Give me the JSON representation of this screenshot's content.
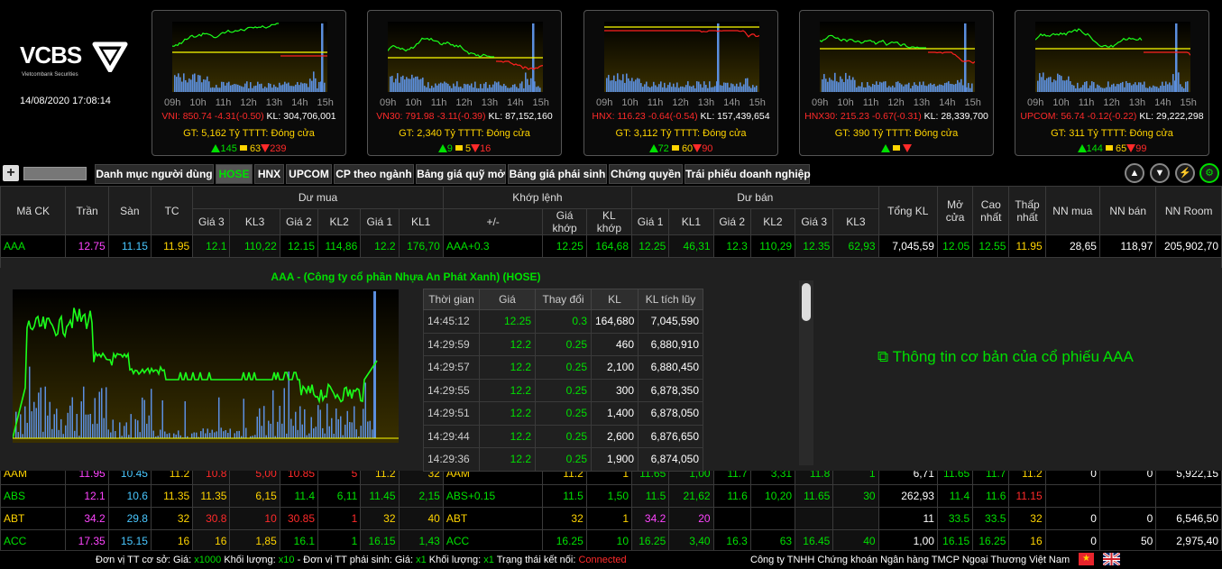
{
  "brand": {
    "name": "VCBS",
    "tagline": "Vietcombank Securities",
    "datetime": "14/08/2020  17:08:14"
  },
  "time_ticks": [
    "09h",
    "10h",
    "11h",
    "12h",
    "13h",
    "14h",
    "15h"
  ],
  "indices": [
    {
      "name": "VNI",
      "value": "850.74",
      "change": "-4.31(-0.50)",
      "kl_label": "KL:",
      "kl": "304,706,001",
      "gt": "GT: 5,162 Tỷ",
      "tttt": "TTTT: Đóng cửa",
      "up": "145",
      "eq": "63",
      "dn": "239"
    },
    {
      "name": "VN30",
      "value": "791.98",
      "change": "-3.11(-0.39)",
      "kl_label": "KL:",
      "kl": "87,152,160",
      "gt": "GT: 2,340 Tỷ",
      "tttt": "TTTT: Đóng cửa",
      "up": "9",
      "eq": "5",
      "dn": "16"
    },
    {
      "name": "HNX",
      "value": "116.23",
      "change": "-0.64(-0.54)",
      "kl_label": "KL:",
      "kl": "157,439,654",
      "gt": "GT: 3,112 Tỷ",
      "tttt": "TTTT: Đóng cửa",
      "up": "72",
      "eq": "60",
      "dn": "90"
    },
    {
      "name": "HNX30",
      "value": "215.23",
      "change": "-0.67(-0.31)",
      "kl_label": "KL:",
      "kl": "28,339,700",
      "gt": "GT: 390 Tỷ",
      "tttt": "TTTT: Đóng cửa",
      "up": "",
      "eq": "",
      "dn": ""
    },
    {
      "name": "UPCOM",
      "value": "56.74",
      "change": "-0.12(-0.22)",
      "kl_label": "KL:",
      "kl": "29,222,298",
      "gt": "GT: 311 Tỷ",
      "tttt": "TTTT: Đóng cửa",
      "up": "144",
      "eq": "65",
      "dn": "99"
    }
  ],
  "tabs": [
    "Danh mục người dùng",
    "HOSE",
    "HNX",
    "UPCOM",
    "CP theo ngành",
    "Bảng giá quỹ mở",
    "Bảng giá phái sinh",
    "Chứng quyền",
    "Trái phiếu doanh nghiệp"
  ],
  "active_tab": "HOSE",
  "header": {
    "ma_ck": "Mã CK",
    "tran": "Trần",
    "san": "Sàn",
    "tc": "TC",
    "du_mua": "Dư mua",
    "khop_lenh": "Khớp lệnh",
    "du_ban": "Dư bán",
    "tong_kl": "Tổng KL",
    "mo_cua": "Mở cửa",
    "cao_nhat": "Cao nhất",
    "thap_nhat": "Thấp nhất",
    "nn_mua": "NN mua",
    "nn_ban": "NN bán",
    "nn_room": "NN Room",
    "gia3": "Giá 3",
    "kl3": "KL3",
    "gia2": "Giá 2",
    "kl2": "KL2",
    "gia1": "Giá 1",
    "kl1": "KL1",
    "pm": "+/-",
    "gia_khop": "Giá khớp",
    "kl_khop": "KL khớp"
  },
  "rows": [
    {
      "sym": "AAA",
      "tran": "12.75",
      "san": "11.15",
      "tc": "11.95",
      "b3": "12.1",
      "bk3": "110,22",
      "b2": "12.15",
      "bk2": "114,86",
      "b1": "12.2",
      "bk1": "176,70",
      "match": "AAA+0.3",
      "mp": "12.25",
      "mk": "164,68",
      "s1": "12.25",
      "sk1": "46,31",
      "s2": "12.3",
      "sk2": "110,29",
      "s3": "12.35",
      "sk3": "62,93",
      "tkl": "7,045,59",
      "open": "12.05",
      "high": "12.55",
      "low": "11.95",
      "nnm": "28,65",
      "nnb": "118,97",
      "room": "205,902,70"
    },
    {
      "sym": "AAM",
      "tran": "11.95",
      "san": "10.45",
      "tc": "11.2",
      "b3": "10.8",
      "bk3": "5,00",
      "b2": "10.85",
      "bk2": "5",
      "b1": "11.2",
      "bk1": "32",
      "match": "AAM",
      "mp": "11.2",
      "mk": "1",
      "s1": "11.65",
      "sk1": "1,00",
      "s2": "11.7",
      "sk2": "3,31",
      "s3": "11.8",
      "sk3": "1",
      "tkl": "6,71",
      "open": "11.65",
      "high": "11.7",
      "low": "11.2",
      "nnm": "0",
      "nnb": "0",
      "room": "5,922,15"
    },
    {
      "sym": "ABS",
      "tran": "12.1",
      "san": "10.6",
      "tc": "11.35",
      "b3": "11.35",
      "bk3": "6,15",
      "b2": "11.4",
      "bk2": "6,11",
      "b1": "11.45",
      "bk1": "2,15",
      "match": "ABS+0.15",
      "mp": "11.5",
      "mk": "1,50",
      "s1": "11.5",
      "sk1": "21,62",
      "s2": "11.6",
      "sk2": "10,20",
      "s3": "11.65",
      "sk3": "30",
      "tkl": "262,93",
      "open": "11.4",
      "high": "11.6",
      "low": "11.15",
      "nnm": "",
      "nnb": "",
      "room": ""
    },
    {
      "sym": "ABT",
      "tran": "34.2",
      "san": "29.8",
      "tc": "32",
      "b3": "30.8",
      "bk3": "10",
      "b2": "30.85",
      "bk2": "1",
      "b1": "32",
      "bk1": "40",
      "match": "ABT",
      "mp": "32",
      "mk": "1",
      "s1": "34.2",
      "sk1": "20",
      "s2": "",
      "sk2": "",
      "s3": "",
      "sk3": "",
      "tkl": "11",
      "open": "33.5",
      "high": "33.5",
      "low": "32",
      "nnm": "0",
      "nnb": "0",
      "room": "6,546,50"
    },
    {
      "sym": "ACC",
      "tran": "17.35",
      "san": "15.15",
      "tc": "16",
      "b3": "16",
      "bk3": "1,85",
      "b2": "16.1",
      "bk2": "1",
      "b1": "16.15",
      "bk1": "1,43",
      "match": "ACC",
      "mp": "16.25",
      "mk": "10",
      "s1": "16.25",
      "sk1": "3,40",
      "s2": "16.3",
      "sk2": "63",
      "s3": "16.45",
      "sk3": "40",
      "tkl": "1,00",
      "open": "16.15",
      "high": "16.25",
      "low": "16",
      "nnm": "0",
      "nnb": "50",
      "room": "2,975,40"
    }
  ],
  "detail": {
    "title": "AAA - (Công ty cổ phần Nhựa An Phát Xanh) (HOSE)",
    "info_link": "Thông tin cơ bản của cổ phiếu AAA",
    "cols": [
      "Thời gian",
      "Giá",
      "Thay đổi",
      "KL",
      "KL tích lũy"
    ],
    "trades": [
      [
        "14:45:12",
        "12.25",
        "0.3",
        "164,680",
        "7,045,590"
      ],
      [
        "14:29:59",
        "12.2",
        "0.25",
        "460",
        "6,880,910"
      ],
      [
        "14:29:57",
        "12.2",
        "0.25",
        "2,100",
        "6,880,450"
      ],
      [
        "14:29:55",
        "12.2",
        "0.25",
        "300",
        "6,878,350"
      ],
      [
        "14:29:51",
        "12.2",
        "0.25",
        "1,400",
        "6,878,050"
      ],
      [
        "14:29:44",
        "12.2",
        "0.25",
        "2,600",
        "6,876,650"
      ],
      [
        "14:29:36",
        "12.2",
        "0.25",
        "1,900",
        "6,874,050"
      ]
    ]
  },
  "footer": {
    "left_a": "Đơn vị TT cơ sở: Giá:",
    "unit1": "x1000",
    "left_b": "Khối lượng:",
    "unit2": "x10",
    "left_c": "- Đơn vị TT phái sinh: Giá:",
    "unit3": "x1",
    "left_d": "Khối lượng:",
    "unit4": "x1",
    "left_e": "Trạng thái kết nối:",
    "status": "Connected",
    "company": "Công ty TNHH Chứng khoán Ngân hàng TMCP Ngoại Thương Việt Nam"
  },
  "colors": {
    "up": "#00e000",
    "down": "#ff2a2a",
    "ref": "#ffd400",
    "ceiling": "#ff44ff",
    "floor": "#49c7ff"
  }
}
